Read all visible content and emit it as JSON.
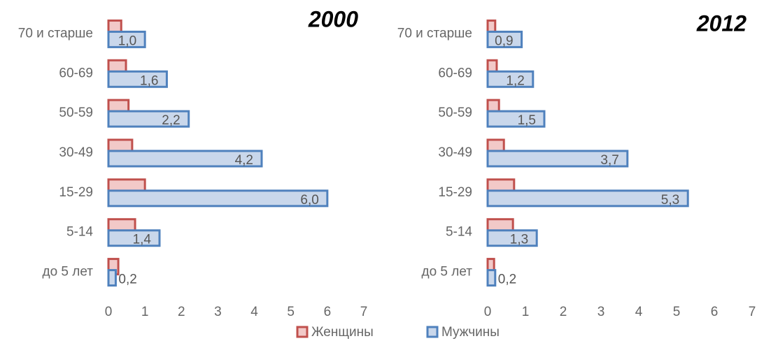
{
  "chart_data": [
    {
      "type": "bar",
      "orientation": "horizontal",
      "title": "2000",
      "categories": [
        "70 и старше",
        "60-69",
        "50-59",
        "30-49",
        "15-29",
        "5-14",
        "до 5 лет"
      ],
      "series": [
        {
          "name": "Женщины",
          "color": "#c0504d",
          "fill": "#f2c9c8",
          "values": [
            0.35,
            0.48,
            0.55,
            0.65,
            1.0,
            0.73,
            0.27
          ]
        },
        {
          "name": "Мужчины",
          "color": "#4f81bd",
          "fill": "#c9d7eb",
          "values": [
            1.0,
            1.6,
            2.2,
            4.2,
            6.0,
            1.4,
            0.2
          ],
          "value_labels": [
            "1,0",
            "1,6",
            "2,2",
            "4,2",
            "6,0",
            "1,4",
            "0,2"
          ]
        }
      ],
      "xlim": [
        0,
        7
      ],
      "xticks": [
        0,
        1,
        2,
        3,
        4,
        5,
        6,
        7
      ]
    },
    {
      "type": "bar",
      "orientation": "horizontal",
      "title": "2012",
      "categories": [
        "70 и старше",
        "60-69",
        "50-59",
        "30-49",
        "15-29",
        "5-14",
        "до 5 лет"
      ],
      "series": [
        {
          "name": "Женщины",
          "color": "#c0504d",
          "fill": "#f2c9c8",
          "values": [
            0.2,
            0.24,
            0.3,
            0.43,
            0.7,
            0.67,
            0.17
          ]
        },
        {
          "name": "Мужчины",
          "color": "#4f81bd",
          "fill": "#c9d7eb",
          "values": [
            0.9,
            1.2,
            1.5,
            3.7,
            5.3,
            1.3,
            0.2
          ],
          "value_labels": [
            "0,9",
            "1,2",
            "1,5",
            "3,7",
            "5,3",
            "1,3",
            "0,2"
          ]
        }
      ],
      "xlim": [
        0,
        7
      ],
      "xticks": [
        0,
        1,
        2,
        3,
        4,
        5,
        6,
        7
      ]
    }
  ]
}
